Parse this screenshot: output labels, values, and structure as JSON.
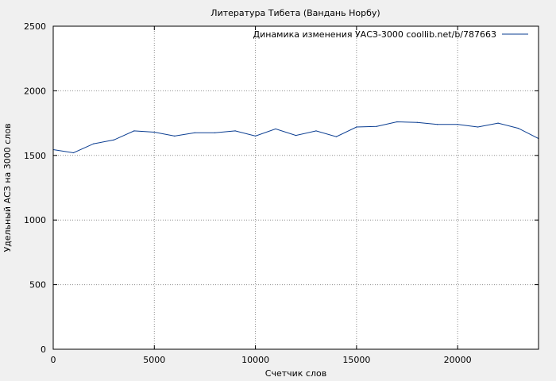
{
  "chart_data": {
    "type": "line",
    "title": "Литература Тибета (Вандань Норбу)",
    "xlabel": "Счетчик слов",
    "ylabel": "Удельный АСЗ на 3000 слов",
    "xlim": [
      0,
      24000
    ],
    "ylim": [
      0,
      2500
    ],
    "xticks": [
      0,
      5000,
      10000,
      15000,
      20000
    ],
    "yticks": [
      0,
      500,
      1000,
      1500,
      2000,
      2500
    ],
    "grid": true,
    "legend_position": "top-right",
    "series": [
      {
        "name": "Динамика изменения УАСЗ-3000 coollib.net/b/787663",
        "color": "#0a3d91",
        "x": [
          0,
          1000,
          2000,
          3000,
          4000,
          5000,
          6000,
          7000,
          8000,
          9000,
          10000,
          11000,
          12000,
          13000,
          14000,
          15000,
          16000,
          17000,
          18000,
          19000,
          20000,
          21000,
          22000,
          23000,
          24000
        ],
        "y": [
          1545,
          1520,
          1590,
          1620,
          1690,
          1680,
          1650,
          1675,
          1675,
          1690,
          1650,
          1705,
          1655,
          1690,
          1645,
          1720,
          1725,
          1760,
          1755,
          1740,
          1740,
          1720,
          1750,
          1710,
          1630
        ]
      }
    ]
  }
}
